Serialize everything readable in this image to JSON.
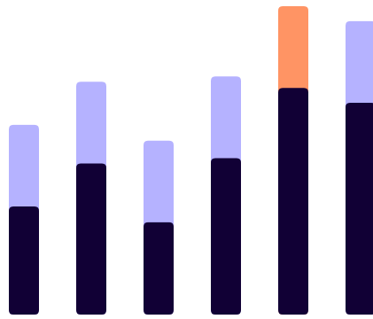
{
  "chart_data": {
    "type": "bar",
    "stacked": true,
    "categories": [
      "",
      "",
      "",
      "",
      "",
      ""
    ],
    "series": [
      {
        "key": "base",
        "color": "#110035",
        "values": [
          123,
          172,
          105,
          178,
          258,
          241
        ]
      },
      {
        "key": "top",
        "colors": [
          "#b5b2ff",
          "#b5b2ff",
          "#b5b2ff",
          "#b5b2ff",
          "#ff9464",
          "#b5b2ff"
        ],
        "values": [
          93,
          93,
          93,
          93,
          93,
          93
        ]
      }
    ],
    "ylim": [
      0,
      352
    ],
    "grid": false,
    "legend": "none"
  }
}
